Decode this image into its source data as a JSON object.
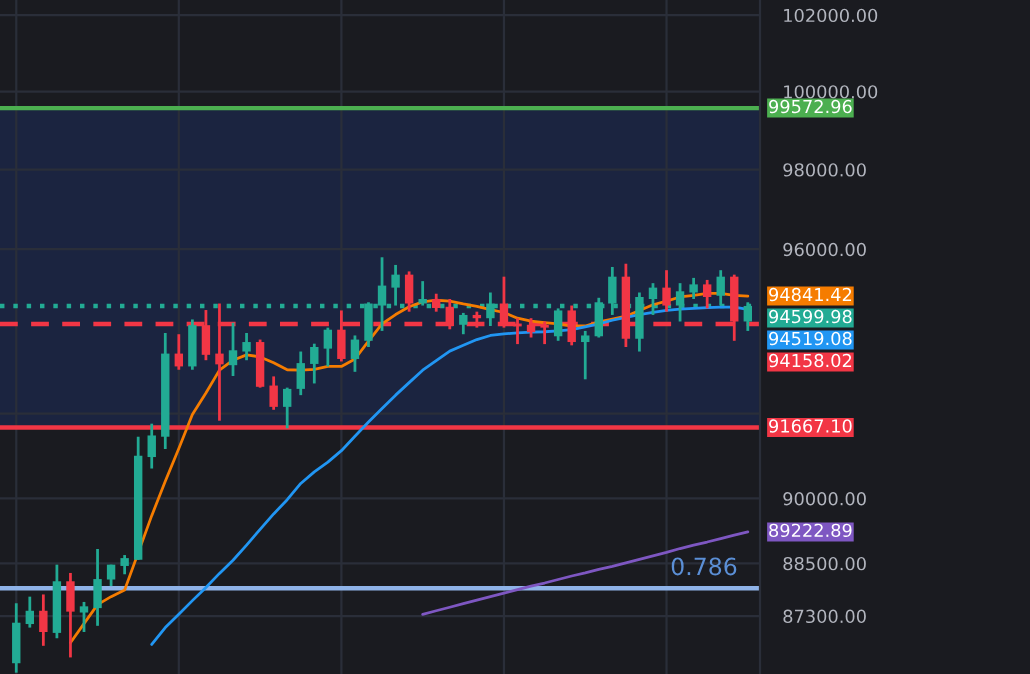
{
  "chart_data": {
    "type": "candlestick",
    "categories": [
      null,
      null,
      null,
      null,
      null,
      null,
      null,
      null,
      null,
      null,
      null,
      null,
      null,
      null,
      null,
      null,
      null,
      null,
      null,
      null,
      null,
      null,
      null,
      null,
      null,
      null,
      null,
      null,
      null,
      null,
      null,
      null,
      null,
      null,
      null,
      null,
      null,
      null,
      null,
      null,
      null,
      null,
      null,
      null,
      null,
      null,
      null,
      null,
      null,
      null,
      null,
      null,
      null,
      null,
      null
    ],
    "ohlc": [
      [
        86240,
        87590,
        86030,
        87150
      ],
      [
        87120,
        87740,
        87040,
        87420
      ],
      [
        87420,
        87790,
        86630,
        86940
      ],
      [
        86920,
        88470,
        86800,
        88090
      ],
      [
        88090,
        88280,
        86370,
        87400
      ],
      [
        87380,
        87620,
        86940,
        87520
      ],
      [
        87480,
        88830,
        87080,
        88140
      ],
      [
        88130,
        88470,
        87980,
        88470
      ],
      [
        88440,
        88690,
        88250,
        88620
      ],
      [
        88580,
        91450,
        88580,
        91000
      ],
      [
        90970,
        91760,
        90700,
        91480
      ],
      [
        91450,
        93940,
        91160,
        93440
      ],
      [
        93440,
        93910,
        93050,
        93130
      ],
      [
        93130,
        94270,
        93050,
        94130
      ],
      [
        94130,
        94500,
        93280,
        93410
      ],
      [
        93440,
        94660,
        91830,
        93180
      ],
      [
        93160,
        94190,
        92900,
        93520
      ],
      [
        93490,
        93940,
        93280,
        93720
      ],
      [
        93720,
        93780,
        92620,
        92640
      ],
      [
        92670,
        92890,
        92090,
        92160
      ],
      [
        92160,
        92620,
        91650,
        92590
      ],
      [
        92590,
        93490,
        92440,
        93210
      ],
      [
        93190,
        93680,
        92720,
        93600
      ],
      [
        93560,
        94070,
        93130,
        94020
      ],
      [
        94020,
        94490,
        93250,
        93310
      ],
      [
        93310,
        93880,
        93000,
        93780
      ],
      [
        93750,
        94690,
        93600,
        94660
      ],
      [
        94610,
        95800,
        93990,
        95100
      ],
      [
        95050,
        95610,
        94610,
        95370
      ],
      [
        95370,
        95450,
        94460,
        94660
      ],
      [
        94660,
        95210,
        94610,
        94770
      ],
      [
        94770,
        94900,
        94460,
        94550
      ],
      [
        94580,
        94770,
        94030,
        94110
      ],
      [
        94140,
        94430,
        93910,
        94380
      ],
      [
        94380,
        94460,
        94070,
        94300
      ],
      [
        94300,
        94930,
        94110,
        94660
      ],
      [
        94660,
        95320,
        94070,
        94140
      ],
      [
        94170,
        94300,
        93670,
        94100
      ],
      [
        94140,
        94300,
        93830,
        93960
      ],
      [
        94140,
        94220,
        93670,
        94070
      ],
      [
        93860,
        94540,
        93750,
        94490
      ],
      [
        94490,
        94610,
        93640,
        93720
      ],
      [
        93720,
        93990,
        92820,
        93880
      ],
      [
        93860,
        94800,
        93830,
        94690
      ],
      [
        94660,
        95560,
        94380,
        95320
      ],
      [
        95320,
        95640,
        93600,
        93800
      ],
      [
        93800,
        94930,
        93490,
        94820
      ],
      [
        94770,
        95160,
        94380,
        95050
      ],
      [
        95050,
        95480,
        94460,
        94610
      ],
      [
        94610,
        95160,
        94220,
        94960
      ],
      [
        94930,
        95290,
        94770,
        95130
      ],
      [
        95130,
        95240,
        94540,
        94820
      ],
      [
        94850,
        95480,
        94610,
        95320
      ],
      [
        95320,
        95370,
        93750,
        94220
      ],
      [
        94220,
        94690,
        93990,
        94599.98
      ]
    ],
    "colors": [
      "#22ab94",
      "#22ab94",
      "#f23645",
      "#22ab94",
      "#f23645",
      "#22ab94",
      "#22ab94",
      "#22ab94",
      "#22ab94",
      "#22ab94",
      "#22ab94",
      "#22ab94",
      "#f23645",
      "#22ab94",
      "#f23645",
      "#f23645",
      "#22ab94",
      "#22ab94",
      "#f23645",
      "#f23645",
      "#22ab94",
      "#22ab94",
      "#22ab94",
      "#22ab94",
      "#f23645",
      "#22ab94",
      "#22ab94",
      "#22ab94",
      "#22ab94",
      "#f23645",
      "#22ab94",
      "#f23645",
      "#f23645",
      "#22ab94",
      "#f23645",
      "#22ab94",
      "#f23645",
      "#f23645",
      "#f23645",
      "#f23645",
      "#22ab94",
      "#f23645",
      "#22ab94",
      "#22ab94",
      "#22ab94",
      "#f23645",
      "#22ab94",
      "#22ab94",
      "#f23645",
      "#22ab94",
      "#22ab94",
      "#f23645",
      "#22ab94",
      "#f23645",
      "#22ab94"
    ],
    "series": [
      {
        "type": "line",
        "color": "#f57c00",
        "values": [
          null,
          null,
          null,
          null,
          86700,
          87130,
          87560,
          87740,
          87890,
          88740,
          89600,
          90400,
          91170,
          91980,
          92490,
          93040,
          93280,
          93410,
          93360,
          93220,
          93050,
          93040,
          93060,
          93130,
          93130,
          93310,
          93740,
          94160,
          94390,
          94580,
          94700,
          94740,
          94720,
          94650,
          94590,
          94510,
          94440,
          94300,
          94230,
          94190,
          94160,
          94110,
          94110,
          94210,
          94280,
          94350,
          94490,
          94630,
          94720,
          94820,
          94860,
          94910,
          94910,
          94860,
          94841.42
        ],
        "value_labels": [
          null,
          null,
          null,
          null,
          null,
          null,
          null,
          null,
          null,
          null,
          null,
          null,
          null,
          null,
          null,
          null,
          null,
          null,
          null,
          null,
          null,
          null,
          null,
          null,
          null,
          null,
          null,
          null,
          null,
          null,
          null,
          null,
          null,
          null,
          null,
          null,
          null,
          null,
          null,
          null,
          null,
          null,
          null,
          null,
          null,
          null,
          null,
          null,
          null,
          null,
          null,
          null,
          null,
          null,
          "94841.42"
        ]
      },
      {
        "type": "line",
        "color": "#2196f3",
        "values": [
          null,
          null,
          null,
          null,
          null,
          null,
          null,
          null,
          null,
          null,
          86660,
          87040,
          87340,
          87650,
          87950,
          88270,
          88570,
          88920,
          89280,
          89640,
          89970,
          90350,
          90620,
          90850,
          91120,
          91460,
          91800,
          92120,
          92440,
          92740,
          93040,
          93270,
          93500,
          93640,
          93780,
          93880,
          93920,
          93940,
          93960,
          93970,
          93990,
          94020,
          94090,
          94160,
          94250,
          94320,
          94390,
          94440,
          94490,
          94520,
          94540,
          94560,
          94570,
          94570,
          94519.08
        ],
        "value_labels": [
          null,
          null,
          null,
          null,
          null,
          null,
          null,
          null,
          null,
          null,
          null,
          null,
          null,
          null,
          null,
          null,
          null,
          null,
          null,
          null,
          null,
          null,
          null,
          null,
          null,
          null,
          null,
          null,
          null,
          null,
          null,
          null,
          null,
          null,
          null,
          null,
          null,
          null,
          null,
          null,
          null,
          null,
          null,
          null,
          null,
          null,
          null,
          null,
          null,
          null,
          null,
          null,
          null,
          null,
          "94519.08"
        ]
      },
      {
        "type": "line",
        "color": "#7e57c2",
        "values": [
          null,
          null,
          null,
          null,
          null,
          null,
          null,
          null,
          null,
          null,
          null,
          null,
          null,
          null,
          null,
          null,
          null,
          null,
          null,
          null,
          null,
          null,
          null,
          null,
          null,
          null,
          null,
          null,
          null,
          null,
          87340,
          87420,
          87500,
          87580,
          87660,
          87740,
          87820,
          87900,
          87980,
          88050,
          88130,
          88210,
          88280,
          88360,
          88430,
          88510,
          88590,
          88670,
          88750,
          88840,
          88920,
          88990,
          89070,
          89150,
          89222.89
        ],
        "value_labels": [
          null,
          null,
          null,
          null,
          null,
          null,
          null,
          null,
          null,
          null,
          null,
          null,
          null,
          null,
          null,
          null,
          null,
          null,
          null,
          null,
          null,
          null,
          null,
          null,
          null,
          null,
          null,
          null,
          null,
          null,
          null,
          null,
          null,
          null,
          null,
          null,
          null,
          null,
          null,
          null,
          null,
          null,
          null,
          null,
          null,
          null,
          null,
          null,
          null,
          null,
          null,
          null,
          null,
          null,
          "89222.89"
        ]
      }
    ],
    "log": true,
    "ylim": [
      86000,
      102400
    ],
    "yticks": [
      {
        "value": 87300,
        "label": "87300.00"
      },
      {
        "value": 88500,
        "label": "88500.00"
      },
      {
        "value": 90000,
        "label": "90000.00"
      },
      {
        "value": 92000,
        "label": null
      },
      {
        "value": 96000,
        "label": "96000.00"
      },
      {
        "value": 98000,
        "label": "98000.00"
      },
      {
        "value": 100000,
        "label": "100000.00"
      },
      {
        "value": 102000,
        "label": "102000.00"
      }
    ],
    "grid": true,
    "bands": [
      {
        "axis": "y",
        "from": 91667.1,
        "to": 99572.96,
        "color": "#1b2440"
      }
    ],
    "ref_lines": [
      {
        "axis": "y",
        "value": 99572.96,
        "label": "99572.96",
        "color": "#4caf50",
        "line_style": "solid"
      },
      {
        "axis": "y",
        "value": 94599.98,
        "label": "94599.98",
        "color": "#22ab94",
        "line_style": "dotted"
      },
      {
        "axis": "y",
        "value": 94158.02,
        "label": "94158.02",
        "color": "#f23645",
        "line_style": "dashed"
      },
      {
        "axis": "y",
        "value": 91667.1,
        "label": "91667.10",
        "color": "#f23645",
        "line_style": "solid"
      },
      {
        "axis": "y",
        "value": 87930,
        "color": "#8fb3e8",
        "line_style": "solid"
      }
    ],
    "annotations": [
      {
        "text": "0.786",
        "y": 87930
      }
    ]
  }
}
